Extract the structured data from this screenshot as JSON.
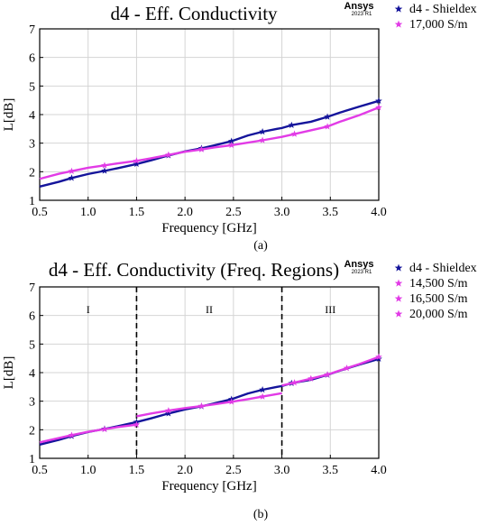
{
  "colors": {
    "navy": "#14149b",
    "magenta": "#e23be6",
    "grid": "#d4d4d4",
    "axis": "#000000"
  },
  "chart_data": [
    {
      "type": "line",
      "title": "d4 - Eff. Conductivity",
      "xlabel": "Frequency [GHz]",
      "ylabel": "L[dB]",
      "caption": "(a)",
      "logo": "Ansys",
      "logo_sub": "2023 R1",
      "xlim": [
        0.5,
        4.0
      ],
      "ylim": [
        1,
        7
      ],
      "xticks": [
        "0.5",
        "1.0",
        "1.5",
        "2.0",
        "2.5",
        "3.0",
        "3.5",
        "4.0"
      ],
      "yticks": [
        "1",
        "2",
        "3",
        "4",
        "5",
        "6",
        "7"
      ],
      "grid": true,
      "legend_position": "top-right outside",
      "series": [
        {
          "name": "d4 - Shieldex",
          "color": "#14149b",
          "marker": "star",
          "x": [
            0.5,
            0.7,
            0.83,
            1.0,
            1.17,
            1.3,
            1.5,
            1.65,
            1.83,
            2.0,
            2.17,
            2.3,
            2.48,
            2.65,
            2.8,
            2.95,
            3.0,
            3.1,
            3.3,
            3.47,
            3.6,
            3.8,
            4.0
          ],
          "y": [
            1.48,
            1.65,
            1.78,
            1.92,
            2.03,
            2.12,
            2.27,
            2.4,
            2.57,
            2.71,
            2.82,
            2.92,
            3.07,
            3.27,
            3.4,
            3.5,
            3.53,
            3.63,
            3.75,
            3.92,
            4.07,
            4.28,
            4.48
          ],
          "marker_x": [
            0.83,
            1.17,
            1.5,
            1.83,
            2.17,
            2.48,
            2.8,
            3.1,
            3.47,
            4.0
          ]
        },
        {
          "name": "17,000 S/m",
          "color": "#e23be6",
          "marker": "star",
          "x": [
            0.5,
            0.7,
            0.83,
            1.0,
            1.17,
            1.3,
            1.5,
            1.65,
            1.83,
            2.0,
            2.17,
            2.3,
            2.48,
            2.65,
            2.8,
            3.0,
            3.13,
            3.3,
            3.47,
            3.6,
            3.8,
            4.0
          ],
          "y": [
            1.75,
            1.93,
            2.02,
            2.14,
            2.22,
            2.29,
            2.38,
            2.47,
            2.59,
            2.7,
            2.78,
            2.85,
            2.93,
            3.02,
            3.1,
            3.22,
            3.32,
            3.45,
            3.58,
            3.75,
            3.98,
            4.25
          ],
          "marker_x": [
            0.83,
            1.17,
            1.5,
            1.83,
            2.17,
            2.48,
            2.8,
            3.13,
            3.47,
            4.0
          ]
        }
      ]
    },
    {
      "type": "line",
      "title": "d4 - Eff. Conductivity (Freq. Regions)",
      "xlabel": "Frequency [GHz]",
      "ylabel": "L[dB]",
      "caption": "(b)",
      "logo": "Ansys",
      "logo_sub": "2023 R1",
      "xlim": [
        0.5,
        4.0
      ],
      "ylim": [
        1,
        7
      ],
      "xticks": [
        "0.5",
        "1.0",
        "1.5",
        "2.0",
        "2.5",
        "3.0",
        "3.5",
        "4.0"
      ],
      "yticks": [
        "1",
        "2",
        "3",
        "4",
        "5",
        "6",
        "7"
      ],
      "grid": true,
      "legend_position": "top-right outside",
      "region_boundaries": [
        1.5,
        3.0
      ],
      "regions": [
        {
          "label": "I",
          "x": 1.0
        },
        {
          "label": "II",
          "x": 2.25
        },
        {
          "label": "III",
          "x": 3.5
        }
      ],
      "series": [
        {
          "name": "d4 - Shieldex",
          "color": "#14149b",
          "marker": "star",
          "x": [
            0.5,
            0.7,
            0.83,
            1.0,
            1.17,
            1.3,
            1.5,
            1.65,
            1.83,
            2.0,
            2.17,
            2.3,
            2.48,
            2.65,
            2.8,
            2.95,
            3.0,
            3.1,
            3.3,
            3.47,
            3.6,
            3.8,
            4.0
          ],
          "y": [
            1.48,
            1.65,
            1.78,
            1.92,
            2.03,
            2.12,
            2.27,
            2.4,
            2.57,
            2.71,
            2.82,
            2.92,
            3.07,
            3.27,
            3.4,
            3.5,
            3.53,
            3.63,
            3.75,
            3.92,
            4.07,
            4.28,
            4.48
          ],
          "marker_x": [
            0.83,
            1.17,
            1.5,
            1.83,
            2.17,
            2.48,
            2.8,
            3.1,
            3.47,
            4.0
          ]
        },
        {
          "name": "14,500 S/m",
          "color": "#e23be6",
          "marker": "star",
          "x": [
            0.5,
            0.83,
            1.0,
            1.17,
            1.3,
            1.5
          ],
          "y": [
            1.56,
            1.81,
            1.93,
            2.02,
            2.09,
            2.18
          ],
          "marker_x": [
            0.83,
            1.17,
            1.5
          ]
        },
        {
          "name": "16,500 S/m",
          "color": "#e23be6",
          "marker": "star",
          "x": [
            1.5,
            1.65,
            1.83,
            2.0,
            2.17,
            2.3,
            2.48,
            2.65,
            2.8,
            3.0
          ],
          "y": [
            2.47,
            2.57,
            2.67,
            2.76,
            2.83,
            2.89,
            2.98,
            3.07,
            3.16,
            3.28
          ],
          "marker_x": [
            1.83,
            2.17,
            2.48,
            2.8
          ]
        },
        {
          "name": "20,000 S/m",
          "color": "#e23be6",
          "marker": "star",
          "x": [
            3.0,
            3.13,
            3.3,
            3.47,
            3.6,
            3.8,
            4.0
          ],
          "y": [
            3.55,
            3.65,
            3.79,
            3.93,
            4.08,
            4.3,
            4.55
          ],
          "marker_x": [
            3.13,
            3.3,
            3.47,
            3.67,
            4.0
          ]
        }
      ]
    }
  ]
}
